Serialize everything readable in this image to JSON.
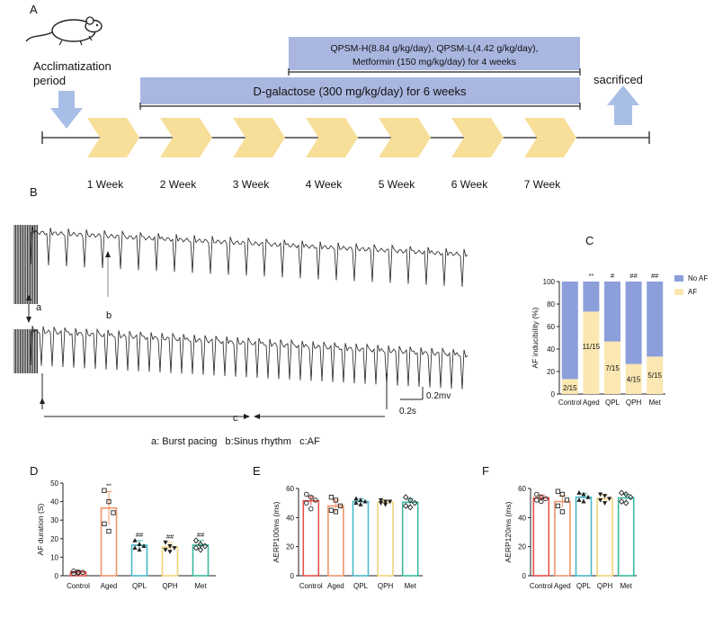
{
  "panel_labels": {
    "a": "A",
    "b": "B",
    "c": "C",
    "d": "D",
    "e": "E",
    "f": "F"
  },
  "timeline": {
    "acclimatization": [
      "Acclimatization",
      "period"
    ],
    "sacrificed": "sacrificed",
    "galactose_band": "D-galactose (300 mg/kg/day) for 6 weeks",
    "treatment_band": [
      "QPSM-H(8.84 g/kg/day), QPSM-L(4.42 g/kg/day),",
      "Metformin (150 mg/kg/day) for 4 weeks"
    ],
    "weeks": [
      "1 Week",
      "2 Week",
      "3 Week",
      "4 Week",
      "5 Week",
      "6 Week",
      "7 Week"
    ],
    "colors": {
      "band": "#a9b7e0",
      "chevron": "#f7df9a",
      "arrow": "#a9bee6"
    }
  },
  "ecg": {
    "marker_a": "a",
    "marker_b": "b",
    "marker_c": "c",
    "scale_v": "0.2mv",
    "scale_t": "0.2s",
    "legend": "a: Burst pacing   b:Sinus rhythm   c:AF"
  },
  "chart_data": [
    {
      "id": "C",
      "type": "bar",
      "stacked": true,
      "categories": [
        "Control",
        "Aged",
        "QPL",
        "QPH",
        "Met"
      ],
      "series": [
        {
          "name": "AF",
          "color": "#fbe7b2",
          "values": [
            13.3,
            73.3,
            46.7,
            26.7,
            33.3
          ]
        },
        {
          "name": "No AF",
          "color": "#8c9fda",
          "values": [
            86.7,
            26.7,
            53.3,
            73.3,
            66.7
          ]
        }
      ],
      "bar_labels": [
        "2/15",
        "11/15",
        "7/15",
        "4/15",
        "5/15"
      ],
      "significance": [
        "",
        "**",
        "#",
        "##",
        "##"
      ],
      "ylabel": "AF inducibility (%)",
      "ylim": [
        0,
        100
      ],
      "yticks": [
        0,
        20,
        40,
        60,
        80,
        100
      ],
      "legend_position": "right"
    },
    {
      "id": "D",
      "type": "bar",
      "categories": [
        "Control",
        "Aged",
        "QPL",
        "QPH",
        "Met"
      ],
      "values": [
        2,
        36.5,
        16.5,
        15.5,
        16.5
      ],
      "errors": [
        0.5,
        9,
        2.5,
        2.5,
        2.5
      ],
      "points": [
        [
          1.2,
          2,
          1.8,
          2.5,
          1.5
        ],
        [
          46,
          40,
          34,
          28,
          24
        ],
        [
          19,
          17,
          16,
          15,
          14
        ],
        [
          18,
          16,
          15,
          14,
          13
        ],
        [
          19,
          17,
          16,
          15,
          14
        ]
      ],
      "colors": [
        "#e5534b",
        "#f0956a",
        "#4bb8c8",
        "#f0d37a",
        "#3cba9f"
      ],
      "significance": [
        "",
        "**",
        "##",
        "##",
        "##"
      ],
      "ylabel": "AF duration (S)",
      "ylim": [
        0,
        50
      ],
      "yticks": [
        0,
        10,
        20,
        30,
        40,
        50
      ]
    },
    {
      "id": "E",
      "type": "bar",
      "categories": [
        "Control",
        "Aged",
        "QPL",
        "QPH",
        "Met"
      ],
      "values": [
        51.5,
        48,
        51,
        50.5,
        50.5
      ],
      "errors": [
        3,
        4,
        2,
        1.5,
        2.5
      ],
      "points": [
        [
          56,
          54,
          52,
          50,
          46
        ],
        [
          54,
          52,
          48,
          45,
          44
        ],
        [
          53,
          52,
          51,
          50,
          49
        ],
        [
          52,
          51,
          51,
          50,
          49
        ],
        [
          54,
          52,
          50,
          48,
          47
        ]
      ],
      "colors": [
        "#e5534b",
        "#f0956a",
        "#4bb8c8",
        "#f0d37a",
        "#3cba9f"
      ],
      "ylabel": "AERP100ms (ms)",
      "ylim": [
        0,
        60
      ],
      "yticks": [
        0,
        20,
        40,
        60
      ]
    },
    {
      "id": "F",
      "type": "bar",
      "categories": [
        "Control",
        "Aged",
        "QPL",
        "QPH",
        "Met"
      ],
      "values": [
        53.5,
        51,
        54,
        53,
        53.5
      ],
      "errors": [
        2,
        4,
        2.5,
        2.5,
        2.5
      ],
      "points": [
        [
          56,
          54,
          53,
          52,
          51
        ],
        [
          58,
          56,
          52,
          48,
          44
        ],
        [
          57,
          56,
          54,
          52,
          51
        ],
        [
          56,
          55,
          53,
          52,
          50
        ],
        [
          57,
          56,
          54,
          51,
          50
        ]
      ],
      "colors": [
        "#e5534b",
        "#f0956a",
        "#4bb8c8",
        "#f0d37a",
        "#3cba9f"
      ],
      "ylabel": "AERP120ms (ms)",
      "ylim": [
        0,
        60
      ],
      "yticks": [
        0,
        20,
        40,
        60
      ]
    }
  ]
}
